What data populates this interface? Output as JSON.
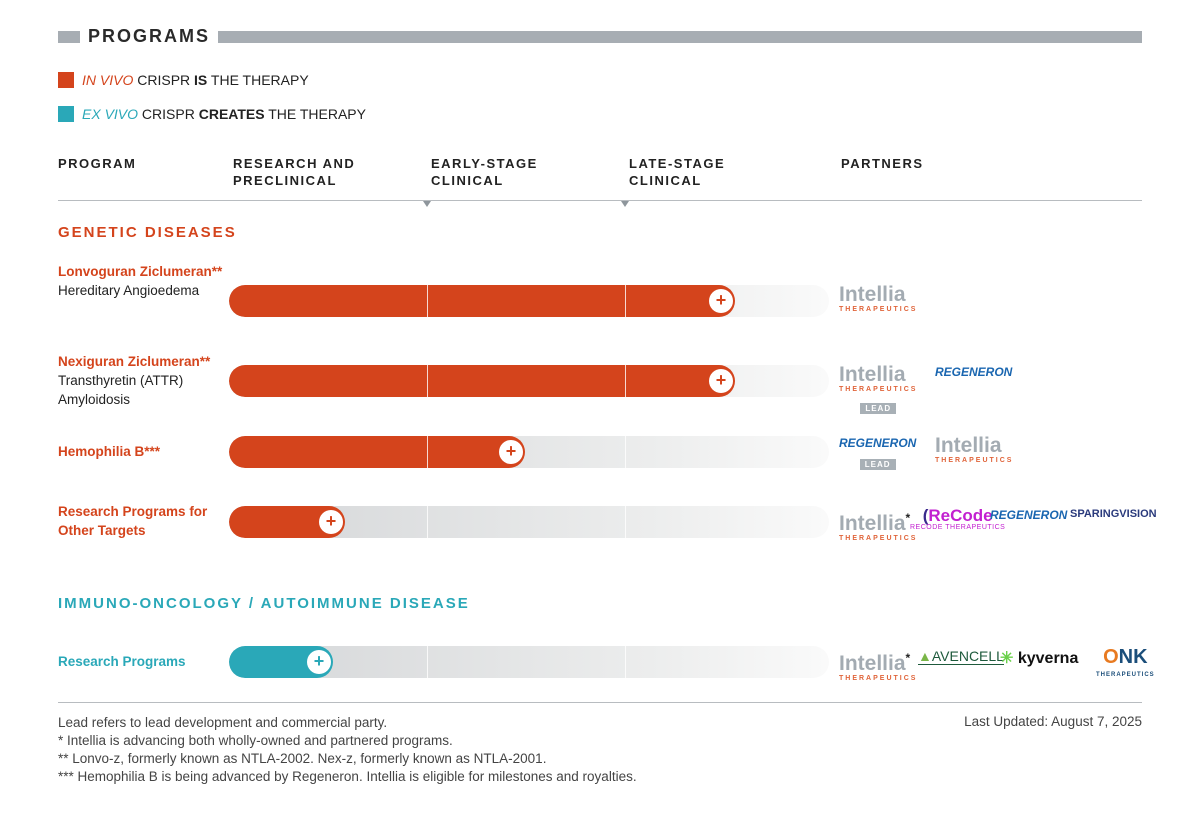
{
  "header": {
    "title": "PROGRAMS"
  },
  "legend": [
    {
      "italic": "IN VIVO",
      "mid": " CRISPR ",
      "bold": "IS",
      "end": " THE THERAPY",
      "color": "#d4441c"
    },
    {
      "italic": "EX VIVO",
      "mid": " CRISPR ",
      "bold": "CREATES",
      "end": " THE THERAPY",
      "color": "#2aa8b8"
    }
  ],
  "columns": {
    "program": "PROGRAM",
    "research": "RESEARCH AND PRECLINICAL",
    "early": "EARLY-STAGE CLINICAL",
    "late": "LATE-STAGE CLINICAL",
    "partners": "PARTNERS"
  },
  "sections": [
    {
      "title": "GENETIC DISEASES",
      "color": "#d4441c",
      "programs": [
        {
          "name": "Lonvoguran Ziclumeran**",
          "indication": "Hereditary Angioedema",
          "progress": 0.82,
          "partners": [
            "Intellia Therapeutics"
          ]
        },
        {
          "name": "Nexiguran Ziclumeran**",
          "indication": "Transthyretin (ATTR) Amyloidosis",
          "progress": 0.82,
          "partners": [
            "Intellia Therapeutics",
            "Regeneron"
          ],
          "lead": "LEAD"
        },
        {
          "name": "Hemophilia B***",
          "indication": "",
          "progress": 0.47,
          "partners": [
            "Regeneron",
            "Intellia Therapeutics"
          ],
          "lead": "LEAD"
        },
        {
          "name": "Research Programs for Other Targets",
          "indication": "",
          "progress": 0.17,
          "partners": [
            "Intellia Therapeutics*",
            "ReCode Therapeutics",
            "Regeneron",
            "SparingVision"
          ]
        }
      ]
    },
    {
      "title": "IMMUNO-ONCOLOGY / AUTOIMMUNE DISEASE",
      "color": "#2aa8b8",
      "programs": [
        {
          "name": "Research Programs",
          "indication": "",
          "progress": 0.15,
          "partners": [
            "Intellia Therapeutics*",
            "AvenCell",
            "kyverna",
            "ONK Therapeutics"
          ]
        }
      ]
    }
  ],
  "logos": {
    "intellia": "Intellia",
    "therapeutics": "THERAPEUTICS",
    "regeneron": "REGENERON",
    "recode": "ReCode",
    "sparing": "SPARINGVISION",
    "avencell": "AVENCELL",
    "kyverna": "kyverna",
    "onk": "ONK",
    "star": "*"
  },
  "footer": {
    "notes": [
      "Lead refers to lead development and commercial party.",
      "* Intellia is advancing both wholly-owned and partnered programs.",
      "** Lonvo-z, formerly known as NTLA-2002. Nex-z, formerly known as NTLA-2001.",
      "*** Hemophilia B is being advanced by Regeneron. Intellia is eligible for milestones and royalties."
    ],
    "updated": "Last Updated: August 7, 2025"
  }
}
